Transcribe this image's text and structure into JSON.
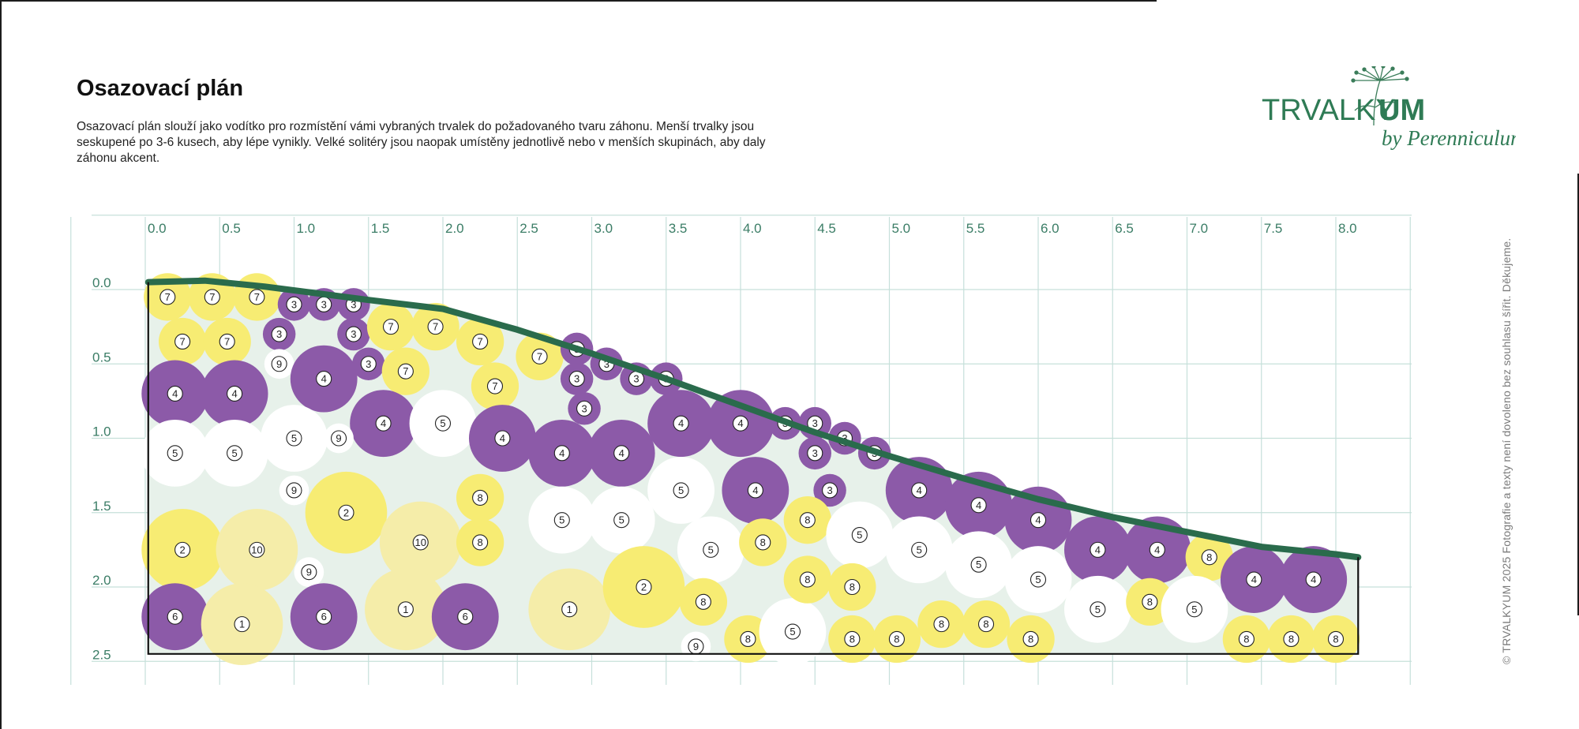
{
  "header": {
    "title": "Osazovací plán",
    "description": "Osazovací plán slouží jako vodítko pro rozmístění vámi vybraných trvalek do požadovaného tvaru záhonu. Menší trvalky jsou seskupené po 3-6 kusech, aby lépe vynikly. Velké solitéry jsou naopak umístěny jednotlivě nebo v menších skupinách, aby daly záhonu akcent."
  },
  "logo": {
    "brand_left": "TRVALKY",
    "brand_right": "UM",
    "tagline": "by Perenniculum"
  },
  "copyright": "© TRVALKYUM 2025 Fotografie a texty není dovoleno bez souhlasu šířit. Děkujeme.",
  "colors": {
    "purple": "#8c5aa8",
    "yellow": "#f7ec73",
    "pale_yellow": "#f5eda9",
    "white": "#ffffff",
    "bed_fill": "#e7f1ea",
    "bed_edge": "#2a6b4c",
    "grid": "#c6e0da",
    "tick_text": "#3b7d66"
  },
  "chart_data": {
    "type": "planting_plan",
    "units": "m",
    "x_ticks": [
      "0.0",
      "0.5",
      "1.0",
      "1.5",
      "2.0",
      "2.5",
      "3.0",
      "3.5",
      "4.0",
      "4.5",
      "5.0",
      "5.5",
      "6.0",
      "6.5",
      "7.0",
      "7.5",
      "8.0"
    ],
    "y_ticks": [
      "0.0",
      "0.5",
      "1.0",
      "1.5",
      "2.0",
      "2.5"
    ],
    "bed_top_edge": [
      [
        0.02,
        -0.05
      ],
      [
        0.4,
        -0.06
      ],
      [
        0.8,
        -0.02
      ],
      [
        1.5,
        0.07
      ],
      [
        2.0,
        0.13
      ],
      [
        2.5,
        0.27
      ],
      [
        3.0,
        0.43
      ],
      [
        3.5,
        0.6
      ],
      [
        4.0,
        0.78
      ],
      [
        4.5,
        0.96
      ],
      [
        5.0,
        1.12
      ],
      [
        5.5,
        1.27
      ],
      [
        6.0,
        1.41
      ],
      [
        6.5,
        1.53
      ],
      [
        7.0,
        1.63
      ],
      [
        7.5,
        1.73
      ],
      [
        8.0,
        1.78
      ],
      [
        8.15,
        1.8
      ]
    ],
    "bed_bottom": 2.45,
    "bed_right": 8.15,
    "plants": [
      {
        "id": "7",
        "x": 0.15,
        "y": 0.05,
        "d": 0.32,
        "color": "yellow"
      },
      {
        "id": "7",
        "x": 0.45,
        "y": 0.05,
        "d": 0.32,
        "color": "yellow"
      },
      {
        "id": "7",
        "x": 0.75,
        "y": 0.05,
        "d": 0.32,
        "color": "yellow"
      },
      {
        "id": "3",
        "x": 1.0,
        "y": 0.1,
        "d": 0.22,
        "color": "purple"
      },
      {
        "id": "3",
        "x": 1.2,
        "y": 0.1,
        "d": 0.22,
        "color": "purple"
      },
      {
        "id": "3",
        "x": 1.4,
        "y": 0.1,
        "d": 0.22,
        "color": "purple"
      },
      {
        "id": "7",
        "x": 0.25,
        "y": 0.35,
        "d": 0.32,
        "color": "yellow"
      },
      {
        "id": "7",
        "x": 0.55,
        "y": 0.35,
        "d": 0.32,
        "color": "yellow"
      },
      {
        "id": "3",
        "x": 0.9,
        "y": 0.3,
        "d": 0.22,
        "color": "purple"
      },
      {
        "id": "3",
        "x": 1.4,
        "y": 0.3,
        "d": 0.22,
        "color": "purple"
      },
      {
        "id": "7",
        "x": 1.65,
        "y": 0.25,
        "d": 0.32,
        "color": "yellow"
      },
      {
        "id": "7",
        "x": 1.95,
        "y": 0.25,
        "d": 0.32,
        "color": "yellow"
      },
      {
        "id": "7",
        "x": 2.25,
        "y": 0.35,
        "d": 0.32,
        "color": "yellow"
      },
      {
        "id": "9",
        "x": 0.9,
        "y": 0.5,
        "d": 0.2,
        "color": "white"
      },
      {
        "id": "3",
        "x": 1.5,
        "y": 0.5,
        "d": 0.22,
        "color": "purple"
      },
      {
        "id": "7",
        "x": 1.75,
        "y": 0.55,
        "d": 0.32,
        "color": "yellow"
      },
      {
        "id": "7",
        "x": 2.35,
        "y": 0.65,
        "d": 0.32,
        "color": "yellow"
      },
      {
        "id": "7",
        "x": 2.65,
        "y": 0.45,
        "d": 0.32,
        "color": "yellow"
      },
      {
        "id": "3",
        "x": 2.9,
        "y": 0.4,
        "d": 0.22,
        "color": "purple"
      },
      {
        "id": "3",
        "x": 3.1,
        "y": 0.5,
        "d": 0.22,
        "color": "purple"
      },
      {
        "id": "3",
        "x": 2.9,
        "y": 0.6,
        "d": 0.22,
        "color": "purple"
      },
      {
        "id": "3",
        "x": 3.3,
        "y": 0.6,
        "d": 0.22,
        "color": "purple"
      },
      {
        "id": "3",
        "x": 3.5,
        "y": 0.6,
        "d": 0.22,
        "color": "purple"
      },
      {
        "id": "4",
        "x": 0.2,
        "y": 0.7,
        "d": 0.45,
        "color": "purple"
      },
      {
        "id": "4",
        "x": 0.6,
        "y": 0.7,
        "d": 0.45,
        "color": "purple"
      },
      {
        "id": "4",
        "x": 1.2,
        "y": 0.6,
        "d": 0.45,
        "color": "purple"
      },
      {
        "id": "3",
        "x": 2.95,
        "y": 0.8,
        "d": 0.22,
        "color": "purple"
      },
      {
        "id": "4",
        "x": 1.6,
        "y": 0.9,
        "d": 0.45,
        "color": "purple"
      },
      {
        "id": "5",
        "x": 2.0,
        "y": 0.9,
        "d": 0.45,
        "color": "white"
      },
      {
        "id": "4",
        "x": 2.4,
        "y": 1.0,
        "d": 0.45,
        "color": "purple"
      },
      {
        "id": "5",
        "x": 1.0,
        "y": 1.0,
        "d": 0.45,
        "color": "white"
      },
      {
        "id": "9",
        "x": 1.3,
        "y": 1.0,
        "d": 0.2,
        "color": "white"
      },
      {
        "id": "5",
        "x": 0.2,
        "y": 1.1,
        "d": 0.45,
        "color": "white"
      },
      {
        "id": "5",
        "x": 0.6,
        "y": 1.1,
        "d": 0.45,
        "color": "white"
      },
      {
        "id": "4",
        "x": 2.8,
        "y": 1.1,
        "d": 0.45,
        "color": "purple"
      },
      {
        "id": "4",
        "x": 3.2,
        "y": 1.1,
        "d": 0.45,
        "color": "purple"
      },
      {
        "id": "4",
        "x": 3.6,
        "y": 0.9,
        "d": 0.45,
        "color": "purple"
      },
      {
        "id": "4",
        "x": 4.0,
        "y": 0.9,
        "d": 0.45,
        "color": "purple"
      },
      {
        "id": "3",
        "x": 4.3,
        "y": 0.9,
        "d": 0.22,
        "color": "purple"
      },
      {
        "id": "3",
        "x": 4.5,
        "y": 0.9,
        "d": 0.22,
        "color": "purple"
      },
      {
        "id": "3",
        "x": 4.7,
        "y": 1.0,
        "d": 0.22,
        "color": "purple"
      },
      {
        "id": "3",
        "x": 4.5,
        "y": 1.1,
        "d": 0.22,
        "color": "purple"
      },
      {
        "id": "3",
        "x": 4.9,
        "y": 1.1,
        "d": 0.22,
        "color": "purple"
      },
      {
        "id": "3",
        "x": 4.6,
        "y": 1.35,
        "d": 0.22,
        "color": "purple"
      },
      {
        "id": "4",
        "x": 4.1,
        "y": 1.35,
        "d": 0.45,
        "color": "purple"
      },
      {
        "id": "5",
        "x": 3.6,
        "y": 1.35,
        "d": 0.45,
        "color": "white"
      },
      {
        "id": "9",
        "x": 1.0,
        "y": 1.35,
        "d": 0.2,
        "color": "white"
      },
      {
        "id": "2",
        "x": 1.35,
        "y": 1.5,
        "d": 0.55,
        "color": "yellow"
      },
      {
        "id": "8",
        "x": 2.25,
        "y": 1.4,
        "d": 0.32,
        "color": "yellow"
      },
      {
        "id": "10",
        "x": 1.85,
        "y": 1.7,
        "d": 0.55,
        "color": "pale_yellow"
      },
      {
        "id": "8",
        "x": 2.25,
        "y": 1.7,
        "d": 0.32,
        "color": "yellow"
      },
      {
        "id": "5",
        "x": 2.8,
        "y": 1.55,
        "d": 0.45,
        "color": "white"
      },
      {
        "id": "5",
        "x": 3.2,
        "y": 1.55,
        "d": 0.45,
        "color": "white"
      },
      {
        "id": "5",
        "x": 3.8,
        "y": 1.75,
        "d": 0.45,
        "color": "white"
      },
      {
        "id": "8",
        "x": 4.15,
        "y": 1.7,
        "d": 0.32,
        "color": "yellow"
      },
      {
        "id": "8",
        "x": 4.45,
        "y": 1.55,
        "d": 0.32,
        "color": "yellow"
      },
      {
        "id": "5",
        "x": 4.8,
        "y": 1.65,
        "d": 0.45,
        "color": "white"
      },
      {
        "id": "4",
        "x": 5.2,
        "y": 1.35,
        "d": 0.45,
        "color": "purple"
      },
      {
        "id": "4",
        "x": 5.6,
        "y": 1.45,
        "d": 0.45,
        "color": "purple"
      },
      {
        "id": "4",
        "x": 6.0,
        "y": 1.55,
        "d": 0.45,
        "color": "purple"
      },
      {
        "id": "5",
        "x": 5.2,
        "y": 1.75,
        "d": 0.45,
        "color": "white"
      },
      {
        "id": "5",
        "x": 5.6,
        "y": 1.85,
        "d": 0.45,
        "color": "white"
      },
      {
        "id": "5",
        "x": 6.0,
        "y": 1.95,
        "d": 0.45,
        "color": "white"
      },
      {
        "id": "4",
        "x": 6.4,
        "y": 1.75,
        "d": 0.45,
        "color": "purple"
      },
      {
        "id": "4",
        "x": 6.8,
        "y": 1.75,
        "d": 0.45,
        "color": "purple"
      },
      {
        "id": "8",
        "x": 7.15,
        "y": 1.8,
        "d": 0.32,
        "color": "yellow"
      },
      {
        "id": "4",
        "x": 7.45,
        "y": 1.95,
        "d": 0.45,
        "color": "purple"
      },
      {
        "id": "4",
        "x": 7.85,
        "y": 1.95,
        "d": 0.45,
        "color": "purple"
      },
      {
        "id": "2",
        "x": 0.25,
        "y": 1.75,
        "d": 0.55,
        "color": "yellow"
      },
      {
        "id": "10",
        "x": 0.75,
        "y": 1.75,
        "d": 0.55,
        "color": "pale_yellow"
      },
      {
        "id": "9",
        "x": 1.1,
        "y": 1.9,
        "d": 0.2,
        "color": "white"
      },
      {
        "id": "6",
        "x": 0.2,
        "y": 2.2,
        "d": 0.45,
        "color": "purple"
      },
      {
        "id": "1",
        "x": 0.65,
        "y": 2.25,
        "d": 0.55,
        "color": "pale_yellow"
      },
      {
        "id": "6",
        "x": 1.2,
        "y": 2.2,
        "d": 0.45,
        "color": "purple"
      },
      {
        "id": "1",
        "x": 1.75,
        "y": 2.15,
        "d": 0.55,
        "color": "pale_yellow"
      },
      {
        "id": "6",
        "x": 2.15,
        "y": 2.2,
        "d": 0.45,
        "color": "purple"
      },
      {
        "id": "1",
        "x": 2.85,
        "y": 2.15,
        "d": 0.55,
        "color": "pale_yellow"
      },
      {
        "id": "2",
        "x": 3.35,
        "y": 2.0,
        "d": 0.55,
        "color": "yellow"
      },
      {
        "id": "8",
        "x": 3.75,
        "y": 2.1,
        "d": 0.32,
        "color": "yellow"
      },
      {
        "id": "9",
        "x": 3.7,
        "y": 2.4,
        "d": 0.2,
        "color": "white"
      },
      {
        "id": "8",
        "x": 4.05,
        "y": 2.35,
        "d": 0.32,
        "color": "yellow"
      },
      {
        "id": "5",
        "x": 4.35,
        "y": 2.3,
        "d": 0.45,
        "color": "white"
      },
      {
        "id": "8",
        "x": 4.45,
        "y": 1.95,
        "d": 0.32,
        "color": "yellow"
      },
      {
        "id": "8",
        "x": 4.75,
        "y": 2.0,
        "d": 0.32,
        "color": "yellow"
      },
      {
        "id": "8",
        "x": 4.75,
        "y": 2.35,
        "d": 0.32,
        "color": "yellow"
      },
      {
        "id": "8",
        "x": 5.05,
        "y": 2.35,
        "d": 0.32,
        "color": "yellow"
      },
      {
        "id": "8",
        "x": 5.35,
        "y": 2.25,
        "d": 0.32,
        "color": "yellow"
      },
      {
        "id": "8",
        "x": 5.65,
        "y": 2.25,
        "d": 0.32,
        "color": "yellow"
      },
      {
        "id": "8",
        "x": 5.95,
        "y": 2.35,
        "d": 0.32,
        "color": "yellow"
      },
      {
        "id": "5",
        "x": 6.4,
        "y": 2.15,
        "d": 0.45,
        "color": "white"
      },
      {
        "id": "8",
        "x": 6.75,
        "y": 2.1,
        "d": 0.32,
        "color": "yellow"
      },
      {
        "id": "5",
        "x": 7.05,
        "y": 2.15,
        "d": 0.45,
        "color": "white"
      },
      {
        "id": "8",
        "x": 7.4,
        "y": 2.35,
        "d": 0.32,
        "color": "yellow"
      },
      {
        "id": "8",
        "x": 7.7,
        "y": 2.35,
        "d": 0.32,
        "color": "yellow"
      },
      {
        "id": "8",
        "x": 8.0,
        "y": 2.35,
        "d": 0.32,
        "color": "yellow"
      }
    ]
  }
}
